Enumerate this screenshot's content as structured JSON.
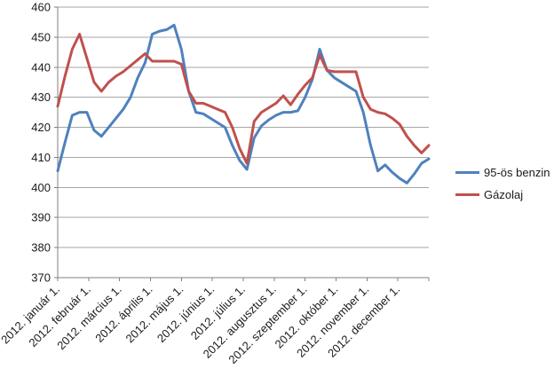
{
  "chart_data": {
    "type": "line",
    "title": "",
    "grid": true,
    "legend_position": "right",
    "colors": {
      "gridline": "#a6a6a6",
      "axis": "#808080",
      "text": "#1a1a1a",
      "background": "#ffffff"
    },
    "x_axis": {
      "categories": [
        "2012. január 1.",
        "2012. február 1.",
        "2012. március 1.",
        "2012. április 1.",
        "2012. május 1.",
        "2012. június 1.",
        "2012. július 1.",
        "2012. augusztus 1.",
        "2012. szeptember 1.",
        "2012. október 1.",
        "2012. november 1.",
        "2012. december 1."
      ]
    },
    "y_axis": {
      "min": 370,
      "max": 460,
      "step": 10,
      "ticks": [
        370,
        380,
        390,
        400,
        410,
        420,
        430,
        440,
        450,
        460
      ]
    },
    "series": [
      {
        "key": "benzin",
        "name": "95-ös benzin",
        "color": "#4F81BD",
        "values": [
          405.5,
          415,
          424,
          425,
          425,
          419,
          417,
          420,
          423,
          426,
          430,
          436.5,
          441.5,
          451,
          452,
          452.5,
          454,
          446,
          432,
          425,
          424.5,
          423,
          421.5,
          420,
          414,
          409,
          406,
          416.5,
          420.5,
          422.5,
          424,
          425,
          425,
          425.5,
          430,
          436,
          446,
          439,
          436.5,
          435,
          433.5,
          432,
          425,
          414,
          405.5,
          407.5,
          405,
          403,
          401.5,
          404.5,
          408,
          409.5
        ]
      },
      {
        "key": "gazolaj",
        "name": "Gázolaj",
        "color": "#C0504D",
        "values": [
          427,
          437,
          446,
          451,
          443,
          435,
          432,
          435,
          437,
          438.5,
          440.5,
          442.5,
          444.5,
          442,
          442,
          442,
          442,
          441,
          432,
          428,
          428,
          427,
          426,
          425,
          420,
          413,
          408,
          422,
          425,
          426.5,
          428,
          430.5,
          427.5,
          431,
          434,
          436.5,
          444,
          439,
          438.5,
          438.5,
          438.5,
          438.5,
          430,
          426,
          425,
          424.5,
          423,
          421,
          417,
          414,
          411.5,
          414
        ]
      }
    ]
  }
}
